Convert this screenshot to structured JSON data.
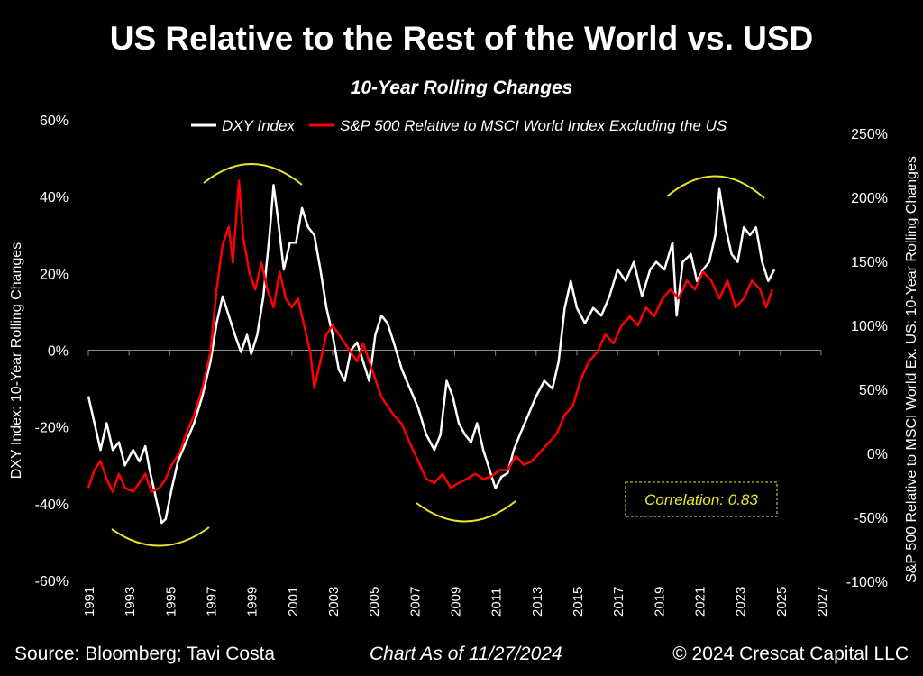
{
  "chart_data": {
    "type": "line",
    "title": "US Relative to the Rest of the World vs. USD",
    "subtitle": "10-Year Rolling Changes",
    "ylabel_left": "DXY Index: 10-Year Rolling Changes",
    "ylabel_right": "S&P 500 Relative to MSCI World Ex. US: 10-Year Rolling Changes",
    "xlim": [
      1991,
      2027
    ],
    "ylim_left": [
      -60,
      60
    ],
    "ylim_right": [
      -100,
      260
    ],
    "x_ticks": [
      "1991",
      "1993",
      "1995",
      "1997",
      "1999",
      "2001",
      "2003",
      "2005",
      "2007",
      "2009",
      "2011",
      "2013",
      "2015",
      "2017",
      "2019",
      "2021",
      "2023",
      "2025",
      "2027"
    ],
    "y_ticks_left": [
      "60%",
      "40%",
      "20%",
      "0%",
      "-20%",
      "-40%",
      "-60%"
    ],
    "y_ticks_right": [
      "250%",
      "200%",
      "150%",
      "100%",
      "50%",
      "0%",
      "-50%",
      "-100%"
    ],
    "legend_placement": "top",
    "grid": false,
    "annotation": "Correlation: 0.83",
    "colors": {
      "dxy": "#ffffff",
      "spx": "#ff0000",
      "highlight": "#e6e62e"
    },
    "series": [
      {
        "name": "DXY Index",
        "axis": "left",
        "points": [
          [
            1991.0,
            -12
          ],
          [
            1991.3,
            -19
          ],
          [
            1991.6,
            -26
          ],
          [
            1991.9,
            -19
          ],
          [
            1992.2,
            -26
          ],
          [
            1992.5,
            -24
          ],
          [
            1992.8,
            -30
          ],
          [
            1993.2,
            -26
          ],
          [
            1993.5,
            -29
          ],
          [
            1993.8,
            -25
          ],
          [
            1994.0,
            -31
          ],
          [
            1994.3,
            -38
          ],
          [
            1994.6,
            -45
          ],
          [
            1994.8,
            -44
          ],
          [
            1995.1,
            -36
          ],
          [
            1995.4,
            -29
          ],
          [
            1995.8,
            -24
          ],
          [
            1996.2,
            -19
          ],
          [
            1996.6,
            -12
          ],
          [
            1997.0,
            -3
          ],
          [
            1997.3,
            7
          ],
          [
            1997.6,
            14
          ],
          [
            1997.9,
            9
          ],
          [
            1998.2,
            4
          ],
          [
            1998.5,
            -0.5
          ],
          [
            1998.8,
            4
          ],
          [
            1999.0,
            -1
          ],
          [
            1999.3,
            4
          ],
          [
            1999.6,
            14
          ],
          [
            1999.9,
            30
          ],
          [
            2000.1,
            43
          ],
          [
            2000.3,
            35
          ],
          [
            2000.6,
            21
          ],
          [
            2000.9,
            28
          ],
          [
            2001.2,
            28
          ],
          [
            2001.5,
            37
          ],
          [
            2001.8,
            32
          ],
          [
            2002.1,
            30
          ],
          [
            2002.4,
            21
          ],
          [
            2002.7,
            11
          ],
          [
            2003.0,
            4
          ],
          [
            2003.3,
            -5
          ],
          [
            2003.6,
            -8
          ],
          [
            2003.9,
            0
          ],
          [
            2004.2,
            2
          ],
          [
            2004.5,
            -3
          ],
          [
            2004.8,
            -8
          ],
          [
            2005.1,
            4
          ],
          [
            2005.4,
            9
          ],
          [
            2005.7,
            7
          ],
          [
            2006.0,
            2
          ],
          [
            2006.4,
            -5
          ],
          [
            2006.8,
            -10
          ],
          [
            2007.2,
            -15
          ],
          [
            2007.6,
            -22
          ],
          [
            2008.0,
            -26
          ],
          [
            2008.3,
            -22
          ],
          [
            2008.6,
            -8
          ],
          [
            2008.9,
            -12
          ],
          [
            2009.2,
            -19
          ],
          [
            2009.5,
            -22
          ],
          [
            2009.8,
            -24
          ],
          [
            2010.1,
            -19
          ],
          [
            2010.4,
            -26
          ],
          [
            2010.7,
            -31
          ],
          [
            2011.0,
            -36
          ],
          [
            2011.3,
            -33
          ],
          [
            2011.6,
            -32
          ],
          [
            2011.9,
            -26
          ],
          [
            2012.2,
            -22
          ],
          [
            2012.6,
            -17
          ],
          [
            2013.0,
            -12
          ],
          [
            2013.4,
            -8
          ],
          [
            2013.8,
            -10
          ],
          [
            2014.1,
            -3
          ],
          [
            2014.4,
            11
          ],
          [
            2014.7,
            18
          ],
          [
            2015.0,
            11
          ],
          [
            2015.4,
            7
          ],
          [
            2015.8,
            11
          ],
          [
            2016.2,
            9
          ],
          [
            2016.6,
            14
          ],
          [
            2017.0,
            21
          ],
          [
            2017.4,
            18
          ],
          [
            2017.8,
            23
          ],
          [
            2018.2,
            14
          ],
          [
            2018.6,
            21
          ],
          [
            2018.9,
            23
          ],
          [
            2019.3,
            21
          ],
          [
            2019.7,
            28
          ],
          [
            2019.9,
            9
          ],
          [
            2020.2,
            23
          ],
          [
            2020.6,
            25
          ],
          [
            2020.9,
            18
          ],
          [
            2021.2,
            21
          ],
          [
            2021.5,
            23
          ],
          [
            2021.8,
            30
          ],
          [
            2022.0,
            42
          ],
          [
            2022.3,
            32
          ],
          [
            2022.6,
            25
          ],
          [
            2022.9,
            23
          ],
          [
            2023.2,
            32
          ],
          [
            2023.5,
            30
          ],
          [
            2023.8,
            32
          ],
          [
            2024.1,
            23
          ],
          [
            2024.4,
            18
          ],
          [
            2024.7,
            21
          ]
        ]
      },
      {
        "name": "S&P 500 Relative to MSCI World Index Excluding the US",
        "axis": "right",
        "points": [
          [
            1991.0,
            -27
          ],
          [
            1991.3,
            -13
          ],
          [
            1991.6,
            -6
          ],
          [
            1991.9,
            -20
          ],
          [
            1992.2,
            -30
          ],
          [
            1992.5,
            -16
          ],
          [
            1992.8,
            -27
          ],
          [
            1993.2,
            -30
          ],
          [
            1993.5,
            -23
          ],
          [
            1993.8,
            -16
          ],
          [
            1994.1,
            -30
          ],
          [
            1994.5,
            -27
          ],
          [
            1994.8,
            -20
          ],
          [
            1995.1,
            -9
          ],
          [
            1995.5,
            1
          ],
          [
            1995.8,
            15
          ],
          [
            1996.2,
            30
          ],
          [
            1996.6,
            51
          ],
          [
            1997.0,
            79
          ],
          [
            1997.3,
            128
          ],
          [
            1997.6,
            163
          ],
          [
            1997.9,
            177
          ],
          [
            1998.1,
            149
          ],
          [
            1998.4,
            213
          ],
          [
            1998.6,
            170
          ],
          [
            1998.9,
            142
          ],
          [
            1999.2,
            128
          ],
          [
            1999.5,
            149
          ],
          [
            1999.8,
            128
          ],
          [
            2000.1,
            114
          ],
          [
            2000.4,
            142
          ],
          [
            2000.7,
            121
          ],
          [
            2001.0,
            114
          ],
          [
            2001.3,
            121
          ],
          [
            2001.6,
            100
          ],
          [
            2001.9,
            79
          ],
          [
            2002.1,
            51
          ],
          [
            2002.4,
            72
          ],
          [
            2002.7,
            93
          ],
          [
            2003.0,
            100
          ],
          [
            2003.3,
            93
          ],
          [
            2003.6,
            86
          ],
          [
            2003.9,
            79
          ],
          [
            2004.2,
            72
          ],
          [
            2004.5,
            86
          ],
          [
            2004.8,
            72
          ],
          [
            2005.1,
            58
          ],
          [
            2005.4,
            44
          ],
          [
            2005.7,
            37
          ],
          [
            2006.0,
            30
          ],
          [
            2006.4,
            23
          ],
          [
            2006.8,
            8
          ],
          [
            2007.2,
            -6
          ],
          [
            2007.6,
            -20
          ],
          [
            2008.0,
            -23
          ],
          [
            2008.4,
            -16
          ],
          [
            2008.8,
            -27
          ],
          [
            2009.2,
            -23
          ],
          [
            2009.6,
            -20
          ],
          [
            2010.0,
            -16
          ],
          [
            2010.4,
            -20
          ],
          [
            2010.8,
            -18
          ],
          [
            2011.2,
            -13
          ],
          [
            2011.6,
            -13
          ],
          [
            2012.0,
            -2
          ],
          [
            2012.4,
            -9
          ],
          [
            2012.8,
            -6
          ],
          [
            2013.2,
            1
          ],
          [
            2013.6,
            8
          ],
          [
            2014.0,
            15
          ],
          [
            2014.4,
            30
          ],
          [
            2014.8,
            37
          ],
          [
            2015.2,
            58
          ],
          [
            2015.6,
            72
          ],
          [
            2016.0,
            79
          ],
          [
            2016.4,
            93
          ],
          [
            2016.8,
            86
          ],
          [
            2017.2,
            100
          ],
          [
            2017.6,
            107
          ],
          [
            2018.0,
            100
          ],
          [
            2018.4,
            114
          ],
          [
            2018.8,
            107
          ],
          [
            2019.2,
            121
          ],
          [
            2019.6,
            128
          ],
          [
            2020.0,
            121
          ],
          [
            2020.4,
            135
          ],
          [
            2020.8,
            128
          ],
          [
            2021.2,
            142
          ],
          [
            2021.6,
            135
          ],
          [
            2022.0,
            121
          ],
          [
            2022.4,
            135
          ],
          [
            2022.8,
            114
          ],
          [
            2023.2,
            121
          ],
          [
            2023.6,
            135
          ],
          [
            2024.0,
            128
          ],
          [
            2024.3,
            114
          ],
          [
            2024.6,
            128
          ]
        ]
      }
    ]
  },
  "footer": {
    "source": "Source: Bloomberg; Tavi Costa",
    "date": "Chart As of 11/27/2024",
    "copyright": "© 2024 Crescat Capital LLC"
  }
}
